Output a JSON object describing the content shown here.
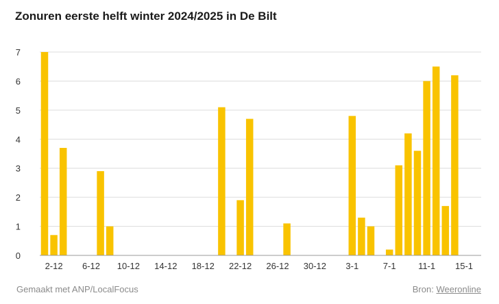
{
  "chart_data": {
    "type": "bar",
    "title": "Zonuren eerste helft winter 2024/2025 in De Bilt",
    "bar_color": "#f9c300",
    "ylim": [
      0,
      7
    ],
    "yticks": [
      0,
      1,
      2,
      3,
      4,
      5,
      6,
      7
    ],
    "xtick_labels": [
      "2-12",
      "6-12",
      "10-12",
      "14-12",
      "18-12",
      "22-12",
      "26-12",
      "30-12",
      "3-1",
      "7-1",
      "11-1",
      "15-1"
    ],
    "categories": [
      "1-12",
      "2-12",
      "3-12",
      "4-12",
      "5-12",
      "6-12",
      "7-12",
      "8-12",
      "9-12",
      "10-12",
      "11-12",
      "12-12",
      "13-12",
      "14-12",
      "15-12",
      "16-12",
      "17-12",
      "18-12",
      "19-12",
      "20-12",
      "21-12",
      "22-12",
      "23-12",
      "24-12",
      "25-12",
      "26-12",
      "27-12",
      "28-12",
      "29-12",
      "30-12",
      "31-12",
      "1-1",
      "2-1",
      "3-1",
      "4-1",
      "5-1",
      "6-1",
      "7-1",
      "8-1",
      "9-1",
      "10-1",
      "11-1",
      "12-1",
      "13-1",
      "14-1",
      "15-1",
      "16-1"
    ],
    "values": [
      7.0,
      0.7,
      3.7,
      0,
      0,
      0,
      2.9,
      1.0,
      0,
      0,
      0,
      0,
      0,
      0,
      0,
      0,
      0,
      0,
      0,
      5.1,
      0,
      1.9,
      4.7,
      0,
      0,
      0,
      1.1,
      0,
      0,
      0,
      0,
      0,
      0,
      4.8,
      1.3,
      1.0,
      0,
      0.2,
      3.1,
      4.2,
      3.6,
      6.0,
      6.5,
      1.7,
      6.2,
      0,
      0
    ]
  },
  "footer": {
    "made_with": "Gemaakt met ANP/LocalFocus",
    "source_prefix": "Bron:",
    "source_link": "Weeronline"
  }
}
